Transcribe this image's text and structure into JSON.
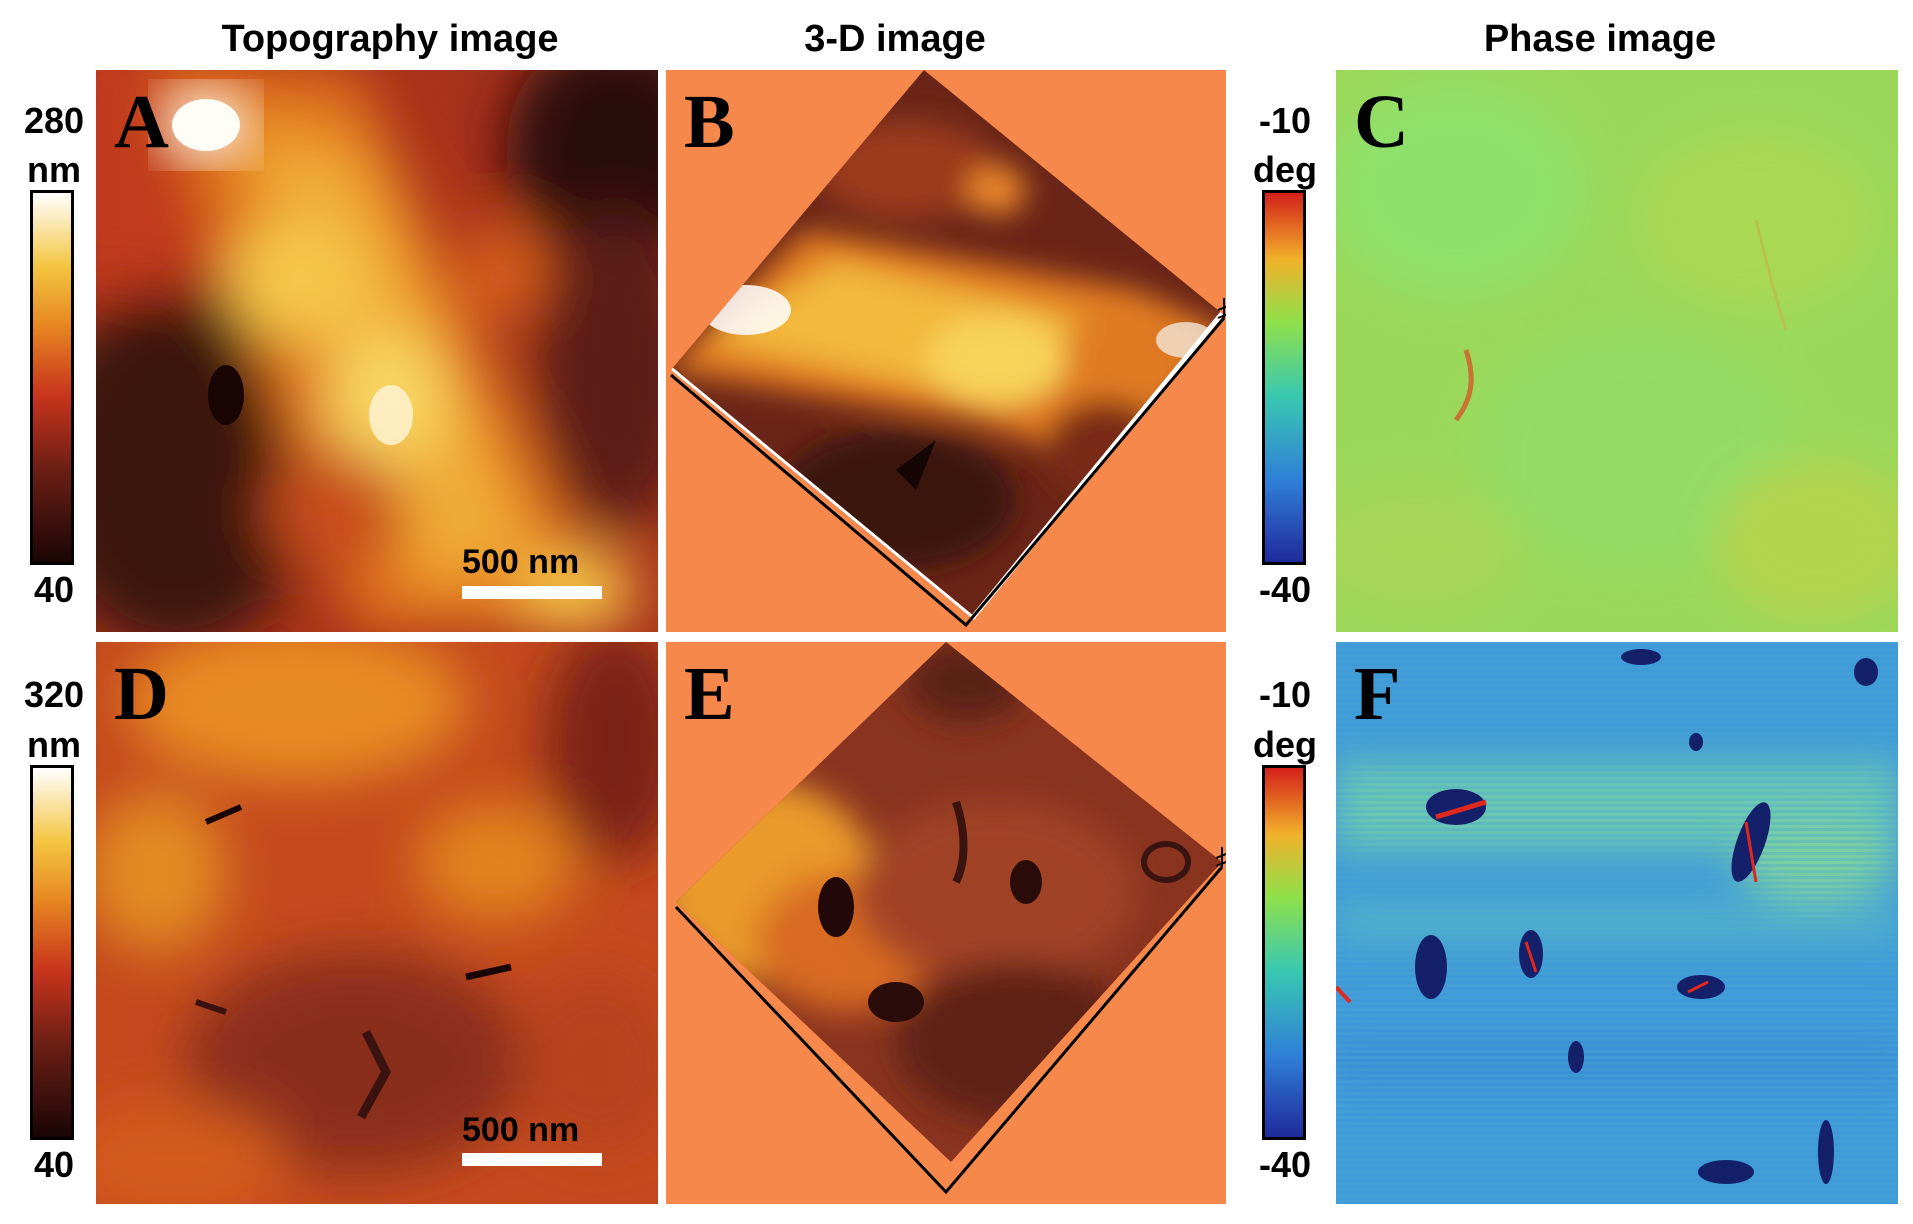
{
  "columns": {
    "topography": "Topography image",
    "three_d": "3-D image",
    "phase": "Phase image"
  },
  "panels": {
    "A": "A",
    "B": "B",
    "C": "C",
    "D": "D",
    "E": "E",
    "F": "F"
  },
  "colorbars": {
    "topo_top": {
      "max": "280",
      "unit": "nm",
      "min": "40"
    },
    "topo_bottom": {
      "max": "320",
      "unit": "nm",
      "min": "40"
    },
    "phase_top": {
      "max": "-10",
      "unit": "deg",
      "min": "-40"
    },
    "phase_bottom": {
      "max": "-10",
      "unit": "deg",
      "min": "-40"
    }
  },
  "scalebars": {
    "top": "500 nm",
    "bottom": "500 nm"
  },
  "colors": {
    "topo_scale": [
      "#1a0505",
      "#6b1f14",
      "#c8341c",
      "#e88a22",
      "#f3c540",
      "#ffffff"
    ],
    "phase_scale": [
      "#1f2a9a",
      "#2f7fd8",
      "#38c8b0",
      "#8fe04a",
      "#f1b12a",
      "#d4201a"
    ],
    "three_d_background": "#f5884a"
  }
}
